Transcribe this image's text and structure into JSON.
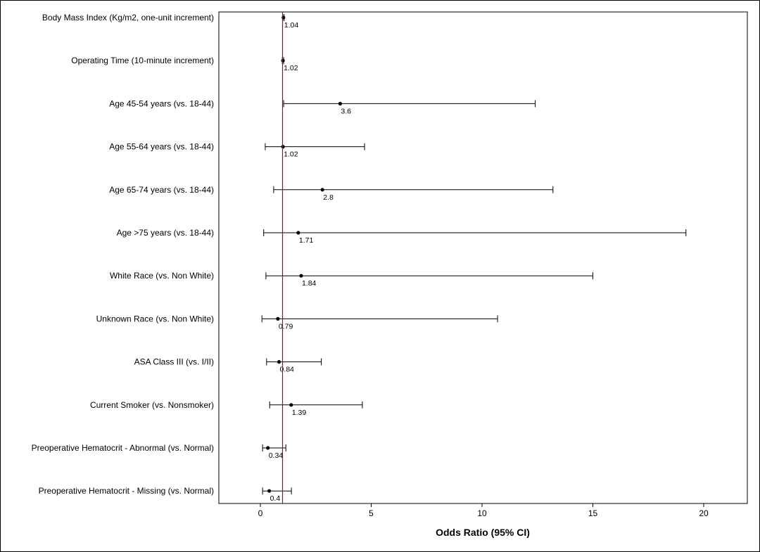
{
  "chart_data": {
    "type": "forest",
    "xlabel": "Odds Ratio (95% CI)",
    "xlim": [
      -2,
      22
    ],
    "xticks": [
      0,
      5,
      10,
      15,
      20
    ],
    "reference_line": 1,
    "reference_color": "#8b1a1a",
    "rows": [
      {
        "label": "Body Mass Index (Kg/m2, one-unit increment)",
        "or": 1.04,
        "lo": 1.01,
        "hi": 1.07,
        "or_label": "1.04"
      },
      {
        "label": "Operating Time (10-minute increment)",
        "or": 1.02,
        "lo": 0.99,
        "hi": 1.05,
        "or_label": "1.02"
      },
      {
        "label": "Age 45-54 years (vs. 18-44)",
        "or": 3.6,
        "lo": 1.05,
        "hi": 12.4,
        "or_label": "3.6"
      },
      {
        "label": "Age 55-64 years (vs. 18-44)",
        "or": 1.02,
        "lo": 0.22,
        "hi": 4.7,
        "or_label": "1.02"
      },
      {
        "label": "Age 65-74 years (vs. 18-44)",
        "or": 2.8,
        "lo": 0.6,
        "hi": 13.2,
        "or_label": "2.8"
      },
      {
        "label": "Age >75 years (vs. 18-44)",
        "or": 1.71,
        "lo": 0.15,
        "hi": 19.2,
        "or_label": "1.71"
      },
      {
        "label": "White Race (vs. Non White)",
        "or": 1.84,
        "lo": 0.25,
        "hi": 15.0,
        "or_label": "1.84"
      },
      {
        "label": "Unknown Race (vs. Non White)",
        "or": 0.79,
        "lo": 0.07,
        "hi": 10.7,
        "or_label": "0.79"
      },
      {
        "label": "ASA Class III (vs. I/II)",
        "or": 0.84,
        "lo": 0.28,
        "hi": 2.75,
        "or_label": "0.84"
      },
      {
        "label": "Current Smoker (vs. Nonsmoker)",
        "or": 1.39,
        "lo": 0.42,
        "hi": 4.6,
        "or_label": "1.39"
      },
      {
        "label": "Preoperative Hematocrit - Abnormal (vs. Normal)",
        "or": 0.34,
        "lo": 0.1,
        "hi": 1.15,
        "or_label": "0.34"
      },
      {
        "label": "Preoperative Hematocrit - Missing (vs. Normal)",
        "or": 0.4,
        "lo": 0.1,
        "hi": 1.4,
        "or_label": "0.4"
      }
    ]
  }
}
